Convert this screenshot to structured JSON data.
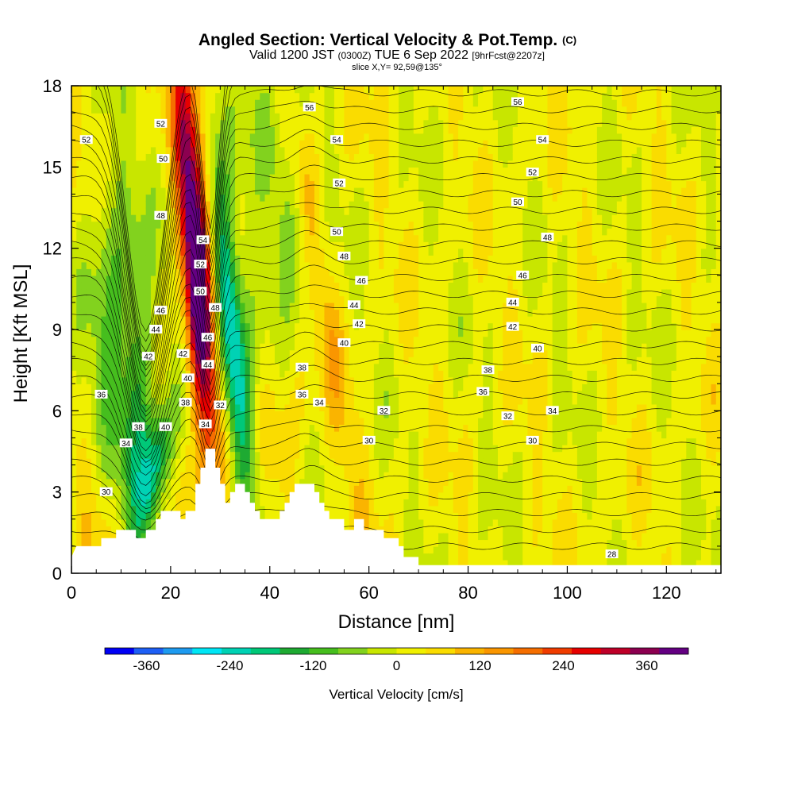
{
  "title": {
    "main": "Angled Section: Vertical Velocity & Pot.Temp.",
    "main_unit": "(C)",
    "valid_a": "Valid 1200 JST",
    "valid_zone": "(0300Z)",
    "valid_b": "TUE 6 Sep 2022",
    "valid_fcst": "[9hrFcst@2207z]",
    "slice": "slice X,Y= 92,59@135°"
  },
  "chart_data": {
    "type": "heatmap",
    "xlabel": "Distance [nm]",
    "ylabel": "Height [Kft MSL]",
    "xlim": [
      0,
      131
    ],
    "ylim": [
      0,
      18
    ],
    "x_ticks": [
      "0",
      "20",
      "40",
      "60",
      "80",
      "100",
      "120"
    ],
    "y_ticks": [
      "0",
      "3",
      "6",
      "9",
      "12",
      "15",
      "18"
    ],
    "colorbar": {
      "label": "Vertical Velocity [cm/s]",
      "tick_labels": [
        "-360",
        "-240",
        "-120",
        "0",
        "120",
        "240",
        "360"
      ],
      "min": -420,
      "max": 420,
      "colors": [
        "#0000f5",
        "#1e5ff5",
        "#1e9bf0",
        "#00e6f5",
        "#00d2b4",
        "#00c878",
        "#1eaa32",
        "#46be1e",
        "#82d21e",
        "#c8e600",
        "#f0f000",
        "#fadc00",
        "#fab400",
        "#fa9600",
        "#f56e00",
        "#f03c00",
        "#e60000",
        "#be0028",
        "#8c0050",
        "#640082"
      ]
    },
    "terrain_kft": [
      [
        0,
        0.6
      ],
      [
        1,
        1.0
      ],
      [
        6,
        1.0
      ],
      [
        6,
        1.3
      ],
      [
        9,
        1.3
      ],
      [
        9,
        1.6
      ],
      [
        13,
        1.6
      ],
      [
        13,
        1.3
      ],
      [
        15,
        1.3
      ],
      [
        15,
        1.6
      ],
      [
        17,
        1.6
      ],
      [
        17,
        2.0
      ],
      [
        18,
        2.0
      ],
      [
        18,
        2.3
      ],
      [
        22,
        2.3
      ],
      [
        22,
        2.0
      ],
      [
        23,
        2.0
      ],
      [
        23,
        2.3
      ],
      [
        25,
        2.3
      ],
      [
        25,
        3.3
      ],
      [
        26,
        3.3
      ],
      [
        26,
        3.9
      ],
      [
        27,
        3.9
      ],
      [
        27,
        4.6
      ],
      [
        29,
        4.6
      ],
      [
        29,
        3.9
      ],
      [
        30,
        3.9
      ],
      [
        30,
        3.3
      ],
      [
        31,
        3.3
      ],
      [
        31,
        2.6
      ],
      [
        32,
        2.6
      ],
      [
        32,
        3.0
      ],
      [
        33,
        3.0
      ],
      [
        33,
        3.3
      ],
      [
        35,
        3.3
      ],
      [
        35,
        3.0
      ],
      [
        36,
        3.0
      ],
      [
        36,
        2.6
      ],
      [
        37,
        2.6
      ],
      [
        37,
        2.3
      ],
      [
        38,
        2.3
      ],
      [
        38,
        2.0
      ],
      [
        42,
        2.0
      ],
      [
        42,
        2.3
      ],
      [
        43,
        2.3
      ],
      [
        43,
        2.6
      ],
      [
        44,
        2.6
      ],
      [
        44,
        3.0
      ],
      [
        45,
        3.0
      ],
      [
        45,
        3.3
      ],
      [
        49,
        3.3
      ],
      [
        49,
        3.0
      ],
      [
        50,
        3.0
      ],
      [
        50,
        2.6
      ],
      [
        51,
        2.6
      ],
      [
        51,
        2.3
      ],
      [
        52,
        2.3
      ],
      [
        52,
        2.0
      ],
      [
        55,
        2.0
      ],
      [
        55,
        1.6
      ],
      [
        57,
        1.6
      ],
      [
        57,
        2.0
      ],
      [
        59,
        2.0
      ],
      [
        59,
        1.6
      ],
      [
        63,
        1.6
      ],
      [
        63,
        1.3
      ],
      [
        66,
        1.3
      ],
      [
        66,
        1.0
      ],
      [
        67,
        1.0
      ],
      [
        67,
        0.6
      ],
      [
        70,
        0.6
      ],
      [
        70,
        0.3
      ],
      [
        131,
        0.3
      ]
    ],
    "theta_labels": [
      {
        "t": "30",
        "x": 7,
        "y": 3.0
      },
      {
        "t": "34",
        "x": 11,
        "y": 4.8
      },
      {
        "t": "36",
        "x": 6,
        "y": 6.6
      },
      {
        "t": "38",
        "x": 13.5,
        "y": 5.4
      },
      {
        "t": "40",
        "x": 19,
        "y": 5.4
      },
      {
        "t": "42",
        "x": 15.5,
        "y": 8.0
      },
      {
        "t": "44",
        "x": 17,
        "y": 9.0
      },
      {
        "t": "46",
        "x": 18,
        "y": 9.7
      },
      {
        "t": "48",
        "x": 18,
        "y": 13.2
      },
      {
        "t": "50",
        "x": 18.5,
        "y": 15.3
      },
      {
        "t": "52",
        "x": 18,
        "y": 16.6
      },
      {
        "t": "52",
        "x": 3,
        "y": 16.0
      },
      {
        "t": "42",
        "x": 22.5,
        "y": 8.1
      },
      {
        "t": "40",
        "x": 23.5,
        "y": 7.2
      },
      {
        "t": "38",
        "x": 23,
        "y": 6.3
      },
      {
        "t": "34",
        "x": 27,
        "y": 5.5
      },
      {
        "t": "32",
        "x": 30,
        "y": 6.2
      },
      {
        "t": "44",
        "x": 27.5,
        "y": 7.7
      },
      {
        "t": "46",
        "x": 27.5,
        "y": 8.7
      },
      {
        "t": "48",
        "x": 29,
        "y": 9.8
      },
      {
        "t": "50",
        "x": 26,
        "y": 10.4
      },
      {
        "t": "52",
        "x": 26,
        "y": 11.4
      },
      {
        "t": "54",
        "x": 26.5,
        "y": 12.3
      },
      {
        "t": "56",
        "x": 48,
        "y": 17.2
      },
      {
        "t": "54",
        "x": 53.5,
        "y": 16.0
      },
      {
        "t": "52",
        "x": 54,
        "y": 14.4
      },
      {
        "t": "50",
        "x": 53.5,
        "y": 12.6
      },
      {
        "t": "48",
        "x": 55,
        "y": 11.7
      },
      {
        "t": "46",
        "x": 58.5,
        "y": 10.8
      },
      {
        "t": "44",
        "x": 57,
        "y": 9.9
      },
      {
        "t": "42",
        "x": 58,
        "y": 9.2
      },
      {
        "t": "40",
        "x": 55,
        "y": 8.5
      },
      {
        "t": "38",
        "x": 46.5,
        "y": 7.6
      },
      {
        "t": "36",
        "x": 46.5,
        "y": 6.6
      },
      {
        "t": "34",
        "x": 50,
        "y": 6.3
      },
      {
        "t": "32",
        "x": 63,
        "y": 6.0
      },
      {
        "t": "30",
        "x": 60,
        "y": 4.9
      },
      {
        "t": "56",
        "x": 90,
        "y": 17.4
      },
      {
        "t": "54",
        "x": 95,
        "y": 16.0
      },
      {
        "t": "52",
        "x": 93,
        "y": 14.8
      },
      {
        "t": "50",
        "x": 90,
        "y": 13.7
      },
      {
        "t": "48",
        "x": 96,
        "y": 12.4
      },
      {
        "t": "46",
        "x": 91,
        "y": 11.0
      },
      {
        "t": "44",
        "x": 89,
        "y": 10.0
      },
      {
        "t": "42",
        "x": 89,
        "y": 9.1
      },
      {
        "t": "40",
        "x": 94,
        "y": 8.3
      },
      {
        "t": "38",
        "x": 84,
        "y": 7.5
      },
      {
        "t": "36",
        "x": 83,
        "y": 6.7
      },
      {
        "t": "34",
        "x": 97,
        "y": 6.0
      },
      {
        "t": "32",
        "x": 88,
        "y": 5.8
      },
      {
        "t": "30",
        "x": 93,
        "y": 4.9
      },
      {
        "t": "28",
        "x": 109,
        "y": 0.7
      }
    ]
  }
}
